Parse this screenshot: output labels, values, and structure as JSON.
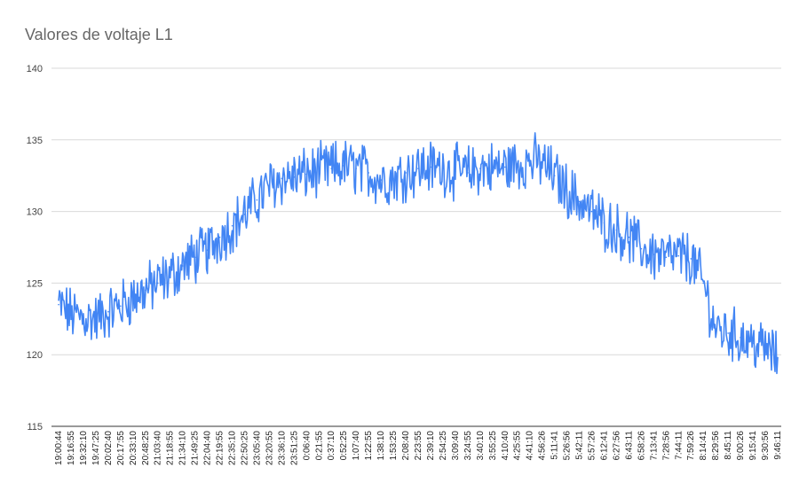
{
  "chart_data": {
    "type": "line",
    "title": "Valores de voltaje L1",
    "xlabel": "",
    "ylabel": "",
    "ylim": [
      115,
      140
    ],
    "y_ticks": [
      115,
      120,
      125,
      130,
      135,
      140
    ],
    "grid": true,
    "legend": "none",
    "categories": [
      "19:00:44",
      "19:16:55",
      "19:32:10",
      "19:47:25",
      "20:02:40",
      "20:17:55",
      "20:33:10",
      "20:48:25",
      "21:03:40",
      "21:18:55",
      "21:34:10",
      "21:49:25",
      "22:04:40",
      "22:19:55",
      "22:35:10",
      "22:50:25",
      "23:05:40",
      "23:20:55",
      "23:36:10",
      "23:51:25",
      "0:06:40",
      "0:21:55",
      "0:37:10",
      "0:52:25",
      "1:07:40",
      "1:22:55",
      "1:38:10",
      "1:53:25",
      "2:08:40",
      "2:23:55",
      "2:39:10",
      "2:54:25",
      "3:09:40",
      "3:24:55",
      "3:40:10",
      "3:55:25",
      "4:10:40",
      "4:25:55",
      "4:41:10",
      "4:56:26",
      "5:11:41",
      "5:26:56",
      "5:42:11",
      "5:57:26",
      "6:12:41",
      "6:27:56",
      "6:43:11",
      "6:58:26",
      "7:13:41",
      "7:28:56",
      "7:44:11",
      "7:59:26",
      "8:14:41",
      "8:29:56",
      "8:45:11",
      "9:00:26",
      "9:15:41",
      "9:30:56",
      "9:46:11"
    ],
    "series": [
      {
        "color": "#4285f4",
        "values": [
          123.5,
          122.8,
          122.6,
          122.5,
          123.0,
          123.4,
          124.0,
          124.5,
          125.0,
          125.5,
          126.2,
          126.8,
          127.3,
          128.2,
          129.0,
          129.8,
          130.8,
          131.8,
          132.3,
          132.4,
          132.6,
          132.8,
          133.0,
          133.2,
          133.0,
          132.7,
          132.2,
          132.3,
          132.7,
          133.0,
          133.1,
          133.0,
          132.8,
          132.7,
          133.0,
          133.0,
          133.1,
          133.3,
          133.5,
          133.4,
          132.5,
          131.5,
          130.7,
          130.0,
          129.2,
          128.7,
          128.2,
          127.4,
          127.0,
          126.8,
          126.9,
          126.7,
          125.0,
          121.8,
          121.5,
          121.2,
          120.8,
          120.5,
          119.8
        ]
      }
    ]
  }
}
